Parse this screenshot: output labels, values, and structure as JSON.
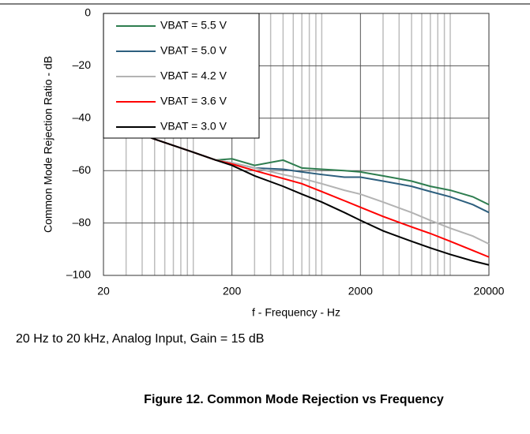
{
  "chart_data": {
    "type": "line",
    "xlabel": "f - Frequency - Hz",
    "ylabel": "Common Mode Rejection Ratio - dB",
    "caption": "20 Hz to 20 kHz, Analog Input, Gain = 15 dB",
    "figure_title": "Figure 12. Common Mode Rejection vs Frequency",
    "xscale": "log",
    "grid": true,
    "legend": "upper left",
    "xlim": [
      20,
      20000
    ],
    "xticks": [
      20,
      200,
      2000,
      20000
    ],
    "xminorticks": [
      30,
      40,
      50,
      60,
      70,
      80,
      90,
      100,
      300,
      400,
      500,
      600,
      700,
      800,
      900,
      1000,
      3000,
      4000,
      5000,
      6000,
      7000,
      8000,
      9000,
      10000
    ],
    "ylim": [
      -100,
      0
    ],
    "yticks": [
      0,
      {
        "value": -20,
        "label": "–20"
      },
      {
        "value": -40,
        "label": "–40"
      },
      {
        "value": -60,
        "label": "–60"
      },
      {
        "value": -80,
        "label": "–80"
      },
      {
        "value": -100,
        "label": "–100"
      }
    ],
    "x": [
      20,
      30,
      50,
      100,
      150,
      200,
      300,
      500,
      700,
      1000,
      1500,
      2000,
      3000,
      5000,
      7000,
      10000,
      15000,
      20000
    ],
    "series": [
      {
        "name": "VBAT = 5.5 V",
        "color": "#2e7d4f",
        "values": [
          -41,
          -44,
          -48,
          -53,
          -56,
          -55.5,
          -58,
          -56,
          -59,
          -59.5,
          -60,
          -60.5,
          -62,
          -64,
          -66,
          -67.5,
          -70,
          -73
        ]
      },
      {
        "name": "VBAT = 5.0 V",
        "color": "#2d5f7e",
        "values": [
          -41,
          -44,
          -48,
          -53,
          -56,
          -57,
          -59,
          -59.5,
          -60.5,
          -61.5,
          -62.5,
          -62.5,
          -64,
          -66,
          -68,
          -70,
          -73,
          -76
        ]
      },
      {
        "name": "VBAT = 4.2 V",
        "color": "#b3b3b3",
        "values": [
          -41,
          -44,
          -48,
          -53,
          -56,
          -57,
          -59,
          -61.5,
          -63,
          -65,
          -67.5,
          -69,
          -72,
          -76,
          -79,
          -82,
          -85,
          -88
        ]
      },
      {
        "name": "VBAT = 3.6 V",
        "color": "#ff0000",
        "values": [
          -41,
          -44,
          -48,
          -53,
          -56,
          -57.5,
          -60,
          -63,
          -65,
          -68,
          -71.5,
          -74,
          -77.5,
          -81.5,
          -84,
          -87,
          -90.5,
          -93
        ]
      },
      {
        "name": "VBAT = 3.0 V",
        "color": "#000000",
        "values": [
          -41,
          -44,
          -48,
          -53,
          -56,
          -58,
          -62,
          -66,
          -69,
          -72,
          -76,
          -79,
          -83,
          -87,
          -89.5,
          -92,
          -94.5,
          -96
        ]
      }
    ]
  }
}
